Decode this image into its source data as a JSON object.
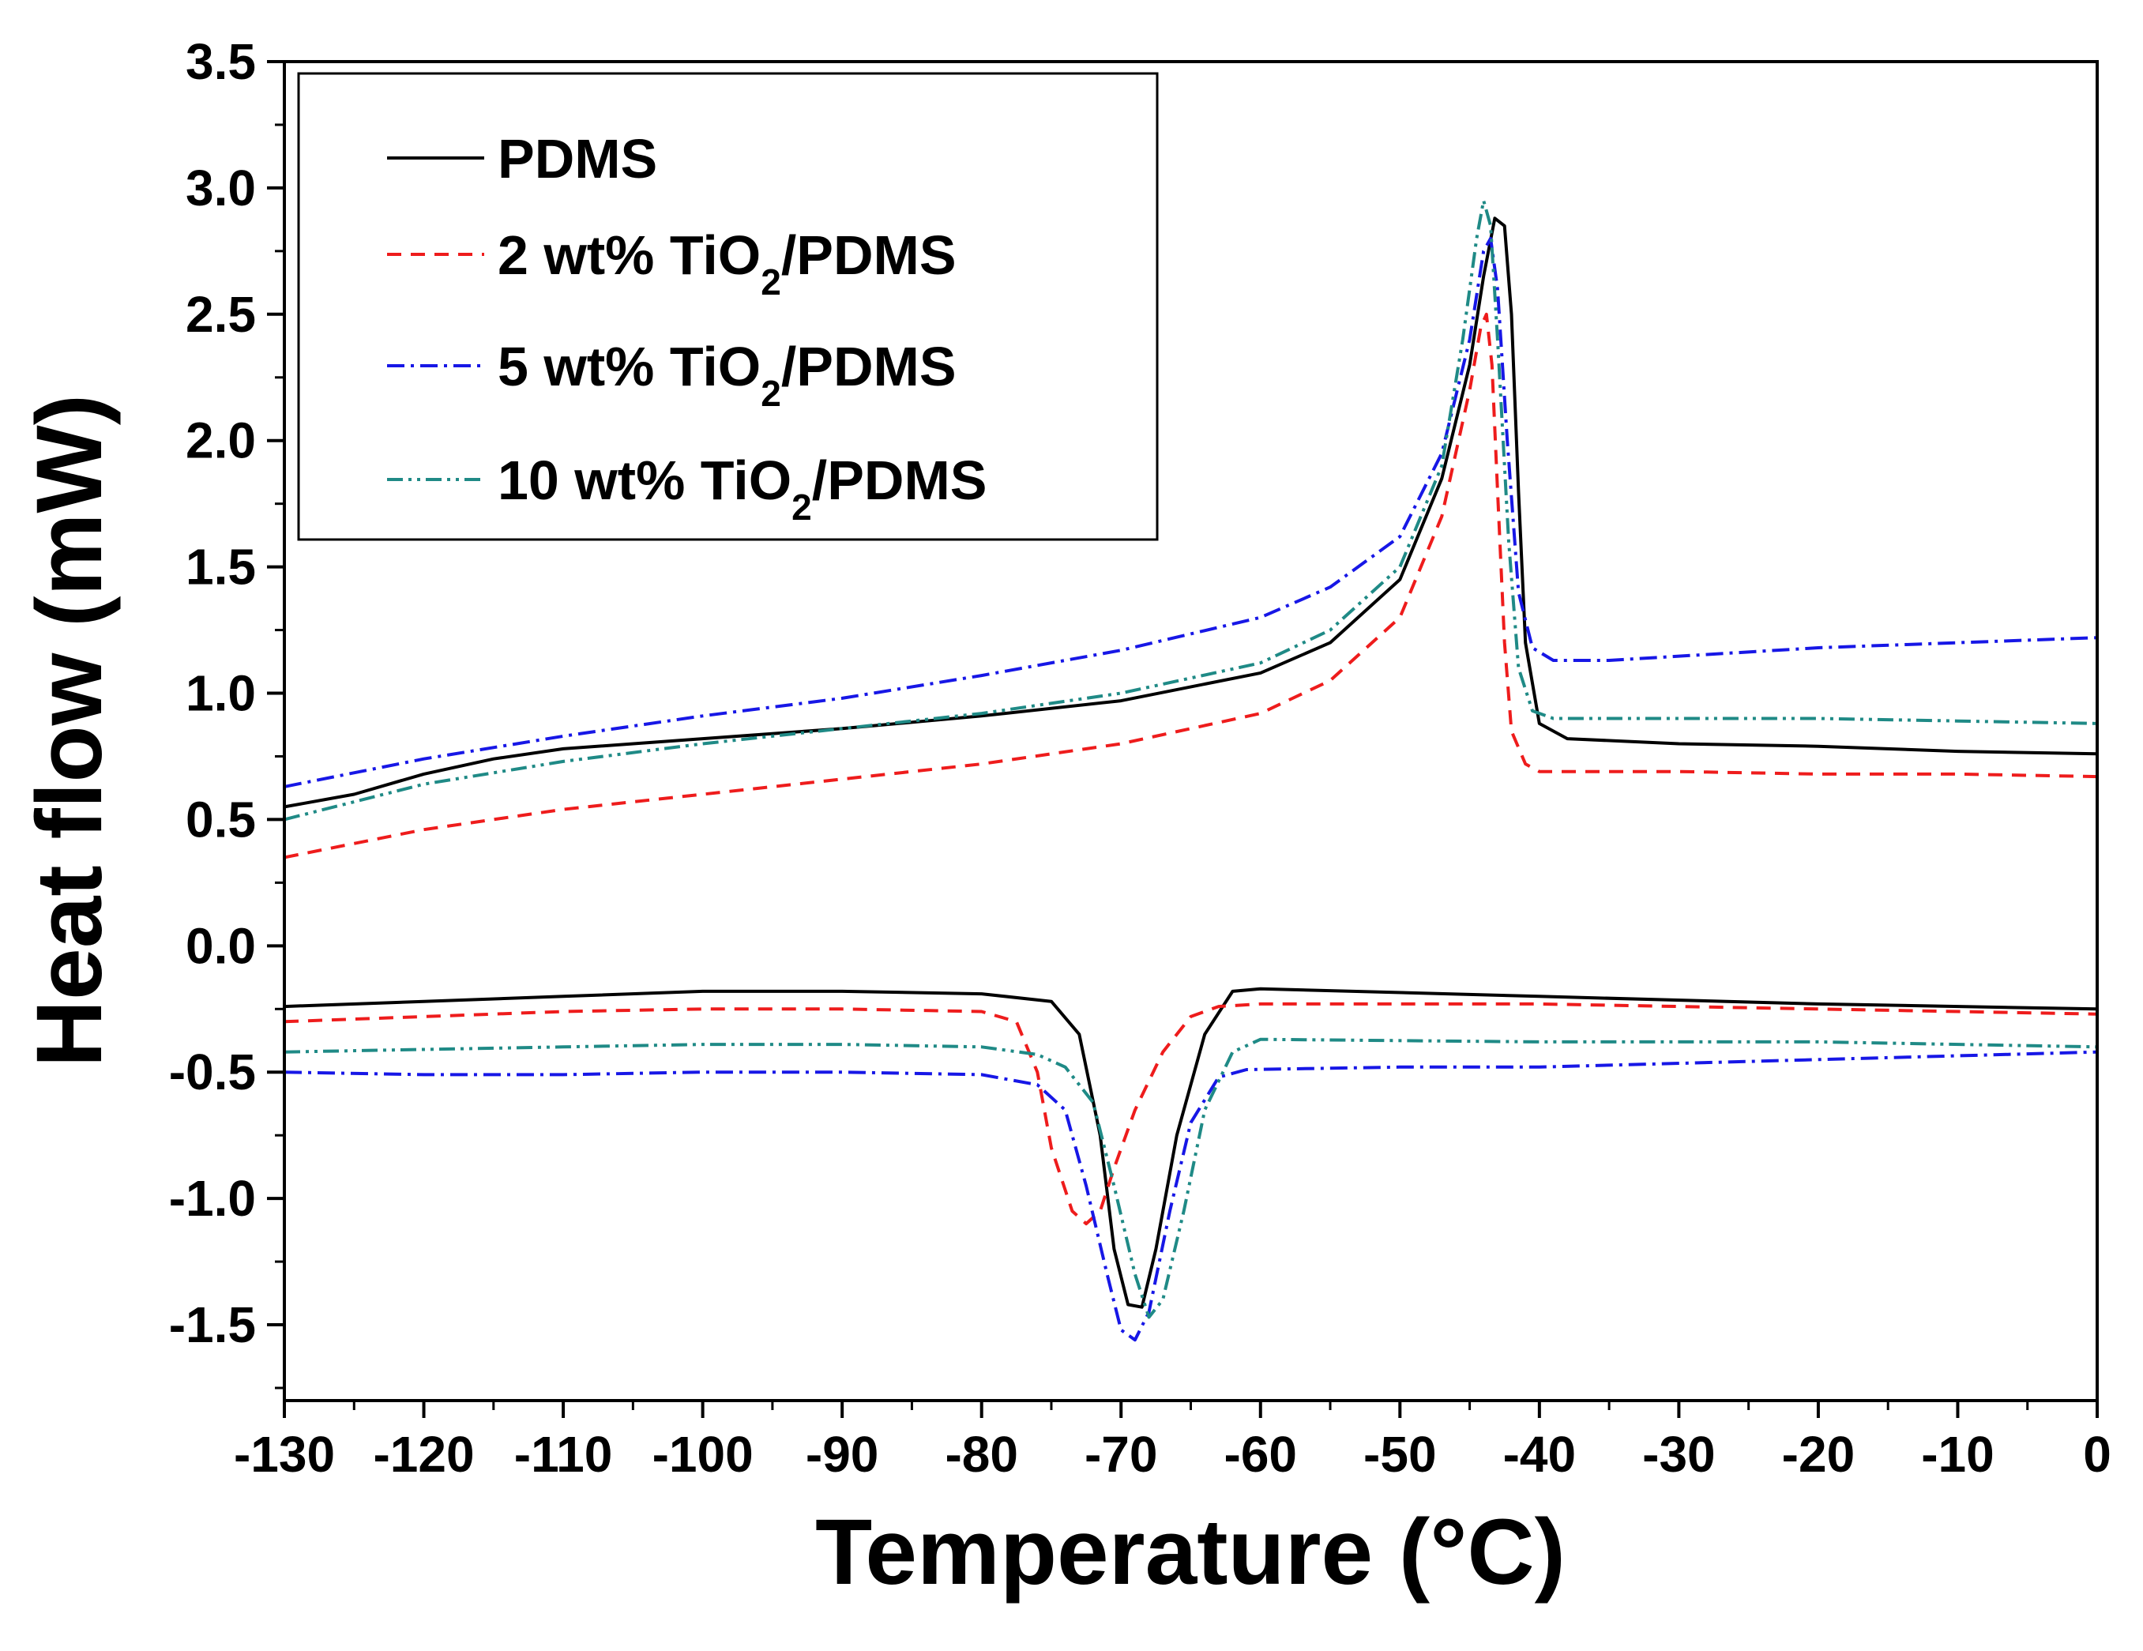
{
  "chart_data": {
    "type": "line",
    "title": "",
    "xlabel": "Temperature (°C)",
    "ylabel": "Heat flow (mW)",
    "xlim": [
      -130,
      0
    ],
    "ylim": [
      -1.8,
      3.5
    ],
    "xticks": [
      "-130",
      "-120",
      "-110",
      "-100",
      "-90",
      "-80",
      "-70",
      "-60",
      "-50",
      "-40",
      "-30",
      "-20",
      "-10",
      "0"
    ],
    "yticks": [
      "3.5",
      "3.0",
      "2.5",
      "2.0",
      "1.5",
      "1.0",
      "0.5",
      "0.0",
      "-0.5",
      "-1.0",
      "-1.5"
    ],
    "grid": false,
    "legend_position": "top-left",
    "series": [
      {
        "name": "PDMS",
        "legend_main": "PDMS",
        "legend_sub": "",
        "legend_tail": "",
        "color": "#000000",
        "dash": "solid",
        "heating": [
          [
            -130,
            0.55
          ],
          [
            -125,
            0.6
          ],
          [
            -120,
            0.68
          ],
          [
            -115,
            0.74
          ],
          [
            -110,
            0.78
          ],
          [
            -100,
            0.82
          ],
          [
            -90,
            0.86
          ],
          [
            -80,
            0.91
          ],
          [
            -70,
            0.97
          ],
          [
            -60,
            1.08
          ],
          [
            -55,
            1.2
          ],
          [
            -50,
            1.45
          ],
          [
            -47,
            1.85
          ],
          [
            -45,
            2.3
          ],
          [
            -44,
            2.65
          ],
          [
            -43.2,
            2.88
          ],
          [
            -42.5,
            2.85
          ],
          [
            -42,
            2.5
          ],
          [
            -41.5,
            1.8
          ],
          [
            -41,
            1.2
          ],
          [
            -40,
            0.88
          ],
          [
            -38,
            0.82
          ],
          [
            -30,
            0.8
          ],
          [
            -20,
            0.79
          ],
          [
            -10,
            0.77
          ],
          [
            0,
            0.76
          ]
        ],
        "cooling": [
          [
            -130,
            -0.24
          ],
          [
            -120,
            -0.22
          ],
          [
            -110,
            -0.2
          ],
          [
            -100,
            -0.18
          ],
          [
            -90,
            -0.18
          ],
          [
            -80,
            -0.19
          ],
          [
            -75,
            -0.22
          ],
          [
            -73,
            -0.35
          ],
          [
            -71.5,
            -0.75
          ],
          [
            -70.5,
            -1.2
          ],
          [
            -69.5,
            -1.42
          ],
          [
            -68.5,
            -1.43
          ],
          [
            -67.5,
            -1.2
          ],
          [
            -66,
            -0.75
          ],
          [
            -64,
            -0.35
          ],
          [
            -62,
            -0.18
          ],
          [
            -60,
            -0.17
          ],
          [
            -40,
            -0.2
          ],
          [
            -20,
            -0.23
          ],
          [
            0,
            -0.25
          ]
        ]
      },
      {
        "name": "2 wt% TiO2/PDMS",
        "legend_main": "2 wt% TiO",
        "legend_sub": "2",
        "legend_tail": "/PDMS",
        "color": "#ee1c1c",
        "dash": "18 12",
        "heating": [
          [
            -130,
            0.35
          ],
          [
            -120,
            0.46
          ],
          [
            -110,
            0.54
          ],
          [
            -100,
            0.6
          ],
          [
            -90,
            0.66
          ],
          [
            -80,
            0.72
          ],
          [
            -70,
            0.8
          ],
          [
            -60,
            0.92
          ],
          [
            -55,
            1.05
          ],
          [
            -50,
            1.3
          ],
          [
            -47,
            1.7
          ],
          [
            -45,
            2.2
          ],
          [
            -44.2,
            2.45
          ],
          [
            -43.8,
            2.5
          ],
          [
            -43.4,
            2.3
          ],
          [
            -43,
            1.8
          ],
          [
            -42.5,
            1.2
          ],
          [
            -42,
            0.85
          ],
          [
            -41,
            0.72
          ],
          [
            -40,
            0.69
          ],
          [
            -30,
            0.69
          ],
          [
            -20,
            0.68
          ],
          [
            -10,
            0.68
          ],
          [
            0,
            0.67
          ]
        ],
        "cooling": [
          [
            -130,
            -0.3
          ],
          [
            -120,
            -0.28
          ],
          [
            -110,
            -0.26
          ],
          [
            -100,
            -0.25
          ],
          [
            -90,
            -0.25
          ],
          [
            -80,
            -0.26
          ],
          [
            -77.5,
            -0.3
          ],
          [
            -76,
            -0.5
          ],
          [
            -75,
            -0.8
          ],
          [
            -73.5,
            -1.05
          ],
          [
            -72.5,
            -1.1
          ],
          [
            -71.5,
            -1.05
          ],
          [
            -70.5,
            -0.88
          ],
          [
            -69,
            -0.65
          ],
          [
            -67,
            -0.42
          ],
          [
            -65,
            -0.28
          ],
          [
            -63,
            -0.24
          ],
          [
            -60,
            -0.23
          ],
          [
            -40,
            -0.23
          ],
          [
            -20,
            -0.25
          ],
          [
            0,
            -0.27
          ]
        ]
      },
      {
        "name": "5 wt% TiO2/PDMS",
        "legend_main": "5 wt% TiO",
        "legend_sub": "2",
        "legend_tail": "/PDMS",
        "color": "#1717e6",
        "dash": "22 8 4 8",
        "heating": [
          [
            -130,
            0.63
          ],
          [
            -120,
            0.74
          ],
          [
            -110,
            0.83
          ],
          [
            -100,
            0.91
          ],
          [
            -90,
            0.98
          ],
          [
            -80,
            1.07
          ],
          [
            -70,
            1.17
          ],
          [
            -60,
            1.3
          ],
          [
            -55,
            1.42
          ],
          [
            -50,
            1.62
          ],
          [
            -47,
            1.95
          ],
          [
            -45,
            2.4
          ],
          [
            -44,
            2.75
          ],
          [
            -43.5,
            2.8
          ],
          [
            -43,
            2.6
          ],
          [
            -42.3,
            2.0
          ],
          [
            -41.5,
            1.4
          ],
          [
            -40.5,
            1.18
          ],
          [
            -39,
            1.13
          ],
          [
            -35,
            1.13
          ],
          [
            -20,
            1.18
          ],
          [
            -10,
            1.2
          ],
          [
            0,
            1.22
          ]
        ],
        "cooling": [
          [
            -130,
            -0.5
          ],
          [
            -120,
            -0.51
          ],
          [
            -110,
            -0.51
          ],
          [
            -100,
            -0.5
          ],
          [
            -90,
            -0.5
          ],
          [
            -80,
            -0.51
          ],
          [
            -76,
            -0.55
          ],
          [
            -74,
            -0.65
          ],
          [
            -72.5,
            -0.95
          ],
          [
            -71,
            -1.3
          ],
          [
            -70,
            -1.52
          ],
          [
            -69,
            -1.56
          ],
          [
            -68,
            -1.45
          ],
          [
            -66.5,
            -1.05
          ],
          [
            -65,
            -0.7
          ],
          [
            -63,
            -0.52
          ],
          [
            -61,
            -0.49
          ],
          [
            -50,
            -0.48
          ],
          [
            -40,
            -0.48
          ],
          [
            -20,
            -0.45
          ],
          [
            0,
            -0.42
          ]
        ]
      },
      {
        "name": "10 wt% TiO2/PDMS",
        "legend_main": "10 wt% TiO",
        "legend_sub": "2",
        "legend_tail": "/PDMS",
        "color": "#1f8a86",
        "dash": "20 7 4 7 4 7",
        "heating": [
          [
            -130,
            0.5
          ],
          [
            -120,
            0.64
          ],
          [
            -110,
            0.73
          ],
          [
            -100,
            0.8
          ],
          [
            -90,
            0.86
          ],
          [
            -80,
            0.92
          ],
          [
            -70,
            1.0
          ],
          [
            -60,
            1.12
          ],
          [
            -55,
            1.25
          ],
          [
            -50,
            1.5
          ],
          [
            -47,
            1.9
          ],
          [
            -45.5,
            2.4
          ],
          [
            -44.5,
            2.8
          ],
          [
            -44,
            2.95
          ],
          [
            -43.5,
            2.85
          ],
          [
            -43,
            2.4
          ],
          [
            -42.2,
            1.6
          ],
          [
            -41.5,
            1.1
          ],
          [
            -40.5,
            0.93
          ],
          [
            -39,
            0.9
          ],
          [
            -30,
            0.9
          ],
          [
            -20,
            0.9
          ],
          [
            -10,
            0.89
          ],
          [
            0,
            0.88
          ]
        ],
        "cooling": [
          [
            -130,
            -0.42
          ],
          [
            -120,
            -0.41
          ],
          [
            -110,
            -0.4
          ],
          [
            -100,
            -0.39
          ],
          [
            -90,
            -0.39
          ],
          [
            -80,
            -0.4
          ],
          [
            -76,
            -0.43
          ],
          [
            -74,
            -0.48
          ],
          [
            -72,
            -0.62
          ],
          [
            -70.5,
            -0.95
          ],
          [
            -69,
            -1.3
          ],
          [
            -68,
            -1.47
          ],
          [
            -67,
            -1.4
          ],
          [
            -65.5,
            -1.05
          ],
          [
            -64,
            -0.65
          ],
          [
            -62,
            -0.42
          ],
          [
            -60,
            -0.37
          ],
          [
            -40,
            -0.38
          ],
          [
            -20,
            -0.38
          ],
          [
            0,
            -0.4
          ]
        ]
      }
    ]
  }
}
